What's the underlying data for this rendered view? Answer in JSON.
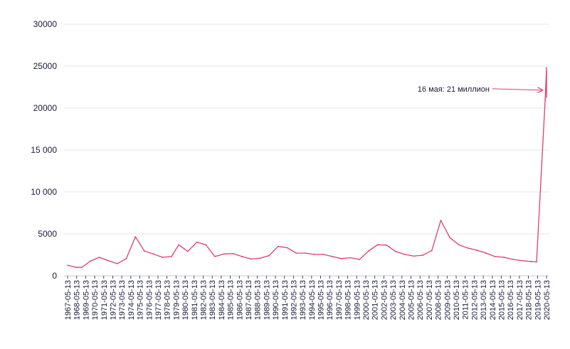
{
  "chart_data": {
    "type": "line",
    "title": "",
    "xlabel": "",
    "ylabel": "",
    "ylim": [
      0,
      30000
    ],
    "yticks": [
      0,
      5000,
      10000,
      15000,
      20000,
      25000,
      30000
    ],
    "ytick_labels": [
      "0",
      "5000",
      "10 000",
      "15 000",
      "20000",
      "25000",
      "30000"
    ],
    "grid": true,
    "colors": {
      "line": "#e03c6c",
      "grid": "#e6e6ee",
      "text": "#1a1a3a"
    },
    "x": [
      "1967-05-13",
      "1968-05-13",
      "1969-05-13",
      "1970-05-13",
      "1971-05-13",
      "1972-05-13",
      "1973-05-13",
      "1974-05-13",
      "1975-05-13",
      "1976-05-13",
      "1977-05-13",
      "1978-05-13",
      "1979-05-13",
      "1980-05-13",
      "1981-05-13",
      "1982-05-13",
      "1983-05-13",
      "1984-05-13",
      "1985-05-13",
      "1986-05-13",
      "1987-05-13",
      "1988-05-13",
      "1989-05-13",
      "1990-05-13",
      "1991-05-13",
      "1992-05-13",
      "1993-05-13",
      "1994-05-13",
      "1995-05-13",
      "1996-05-13",
      "1997-05-13",
      "1998-05-13",
      "1999-05-13",
      "2000-05-13",
      "2001-05-13",
      "2002-05-13",
      "2003-05-13",
      "2004-05-13",
      "2005-05-13",
      "2006-05-13",
      "2007-05-13",
      "2008-05-13",
      "2009-05-13",
      "2010-05-13",
      "2011-05-13",
      "2012-05-13",
      "2013-05-13",
      "2014-05-13",
      "2015-05-13",
      "2016-05-13",
      "2017-05-13",
      "2018-05-13",
      "2019-05-13",
      "2020-05-13"
    ],
    "series": [
      {
        "values": [
          [
            0,
            1250
          ],
          [
            1,
            1000
          ],
          [
            1.6,
            1020
          ],
          [
            2.5,
            1750
          ],
          [
            3.5,
            2200
          ],
          [
            4.5,
            1800
          ],
          [
            5.5,
            1450
          ],
          [
            6.5,
            2050
          ],
          [
            7.5,
            4650
          ],
          [
            8.5,
            2950
          ],
          [
            9.5,
            2600
          ],
          [
            10.5,
            2200
          ],
          [
            11.5,
            2300
          ],
          [
            12.3,
            3700
          ],
          [
            13.3,
            2900
          ],
          [
            14.3,
            4000
          ],
          [
            15.3,
            3700
          ],
          [
            16.3,
            2300
          ],
          [
            17.3,
            2600
          ],
          [
            18.3,
            2650
          ],
          [
            19.3,
            2300
          ],
          [
            20.3,
            2000
          ],
          [
            21.3,
            2100
          ],
          [
            22.3,
            2400
          ],
          [
            23.3,
            3500
          ],
          [
            24.3,
            3350
          ],
          [
            25.3,
            2700
          ],
          [
            26.3,
            2700
          ],
          [
            27.3,
            2550
          ],
          [
            28.3,
            2550
          ],
          [
            29.3,
            2300
          ],
          [
            30.3,
            2050
          ],
          [
            31.3,
            2150
          ],
          [
            32.3,
            1950
          ],
          [
            33.3,
            2950
          ],
          [
            34.3,
            3700
          ],
          [
            35.3,
            3650
          ],
          [
            36.3,
            2900
          ],
          [
            37.3,
            2550
          ],
          [
            38.3,
            2350
          ],
          [
            39.3,
            2450
          ],
          [
            40.3,
            3000
          ],
          [
            41.3,
            6600
          ],
          [
            42.3,
            4550
          ],
          [
            43.3,
            3700
          ],
          [
            44.3,
            3300
          ],
          [
            45.3,
            3050
          ],
          [
            46.3,
            2700
          ],
          [
            47.3,
            2300
          ],
          [
            48.3,
            2200
          ],
          [
            49.3,
            1950
          ],
          [
            50.3,
            1800
          ],
          [
            51.3,
            1700
          ],
          [
            51.9,
            1650
          ],
          [
            52.85,
            21000
          ],
          [
            53,
            24800
          ],
          [
            53,
            21300
          ]
        ]
      }
    ],
    "annotations": [
      {
        "text": "16 мая: 21 миллион",
        "x": 52.7,
        "y": 22300
      }
    ]
  }
}
